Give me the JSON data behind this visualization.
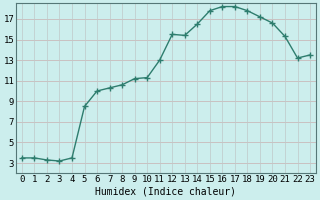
{
  "x": [
    0,
    1,
    2,
    3,
    4,
    5,
    6,
    7,
    8,
    9,
    10,
    11,
    12,
    13,
    14,
    15,
    16,
    17,
    18,
    19,
    20,
    21,
    22,
    23
  ],
  "y": [
    3.5,
    3.5,
    3.3,
    3.2,
    3.5,
    8.5,
    10.0,
    10.3,
    10.6,
    11.2,
    11.3,
    13.0,
    15.5,
    15.4,
    16.5,
    17.8,
    18.2,
    18.2,
    17.8,
    17.2,
    16.6,
    15.3,
    13.2,
    13.5
  ],
  "xlabel": "Humidex (Indice chaleur)",
  "xlim": [
    -0.5,
    23.5
  ],
  "ylim": [
    2.0,
    18.5
  ],
  "yticks": [
    3,
    5,
    7,
    9,
    11,
    13,
    15,
    17
  ],
  "xticks": [
    0,
    1,
    2,
    3,
    4,
    5,
    6,
    7,
    8,
    9,
    10,
    11,
    12,
    13,
    14,
    15,
    16,
    17,
    18,
    19,
    20,
    21,
    22,
    23
  ],
  "line_color": "#2e7d6e",
  "bg_color": "#cceeed",
  "grid_color_h": "#c8b0b0",
  "grid_color_v": "#c0c8c8",
  "marker": "+",
  "marker_size": 4,
  "linewidth": 1.0,
  "xlabel_fontsize": 7,
  "tick_fontsize": 6.5
}
